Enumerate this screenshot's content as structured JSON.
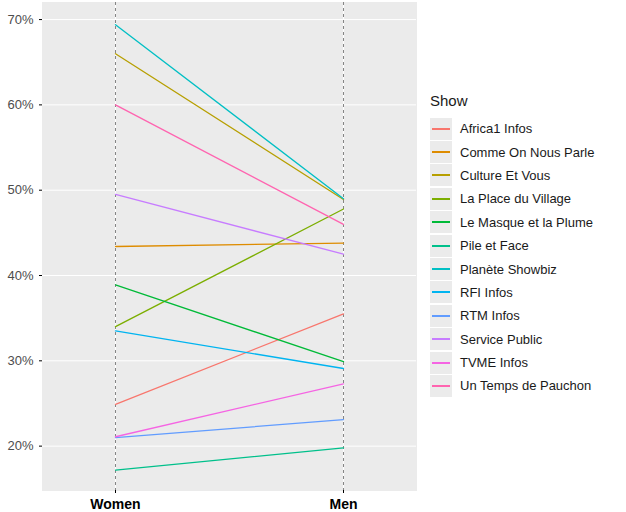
{
  "chart_data": {
    "type": "line",
    "x": [
      "Women",
      "Men"
    ],
    "legend_title": "Show",
    "legend": "right",
    "grid": true,
    "ylim": [
      14.8,
      72
    ],
    "yticks": [
      {
        "value": 20,
        "label": "20%"
      },
      {
        "value": 30,
        "label": "30%"
      },
      {
        "value": 40,
        "label": "40%"
      },
      {
        "value": 50,
        "label": "50%"
      },
      {
        "value": 60,
        "label": "60%"
      },
      {
        "value": 70,
        "label": "70%"
      }
    ],
    "series": [
      {
        "name": "Africa1 Infos",
        "color": "#F8766D",
        "values": [
          24.9,
          35.5
        ]
      },
      {
        "name": "Comme On Nous Parle",
        "color": "#DE8C00",
        "values": [
          43.4,
          43.8
        ]
      },
      {
        "name": "Culture Et Vous",
        "color": "#B79F00",
        "values": [
          66.0,
          48.9
        ]
      },
      {
        "name": "La Place du Village",
        "color": "#7CAE00",
        "values": [
          34.0,
          47.8
        ]
      },
      {
        "name": "Le Masque et la Plume",
        "color": "#00BA38",
        "values": [
          38.9,
          29.9
        ]
      },
      {
        "name": "Pile et Face",
        "color": "#00C08B",
        "values": [
          17.2,
          19.8
        ]
      },
      {
        "name": "Planète Showbiz",
        "color": "#00BFC4",
        "values": [
          69.4,
          49.0
        ]
      },
      {
        "name": "RFI Infos",
        "color": "#00B4F0",
        "values": [
          33.5,
          29.1
        ]
      },
      {
        "name": "RTM Infos",
        "color": "#619CFF",
        "values": [
          21.0,
          23.1
        ]
      },
      {
        "name": "Service Public",
        "color": "#C77CFF",
        "values": [
          49.5,
          42.5
        ]
      },
      {
        "name": "TVME Infos",
        "color": "#F564E3",
        "values": [
          21.1,
          27.3
        ]
      },
      {
        "name": "Un Temps de Pauchon",
        "color": "#FF64B0",
        "values": [
          60.0,
          46.0
        ]
      }
    ]
  }
}
